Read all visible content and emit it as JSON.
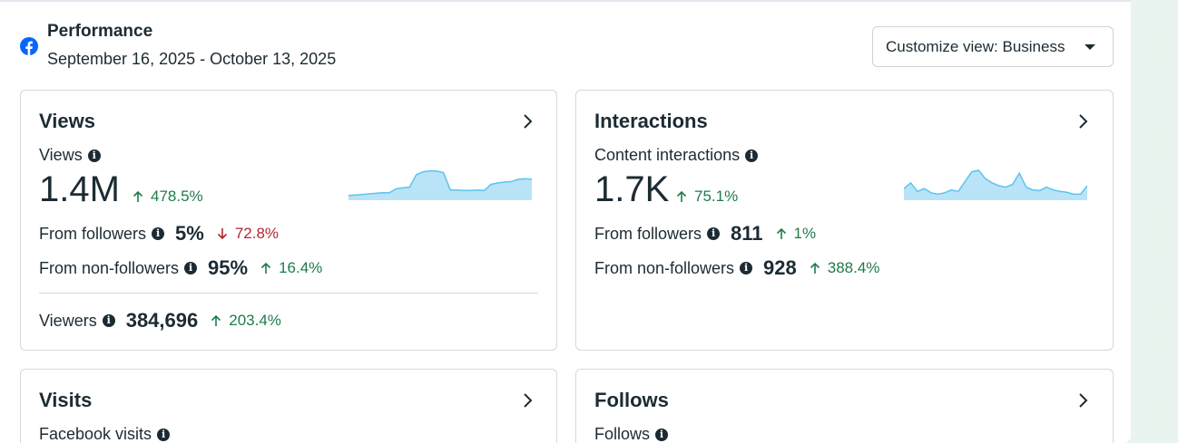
{
  "header": {
    "title": "Performance",
    "date_range": "September 16, 2025 - October 13, 2025",
    "customize_label": "Customize view: Business",
    "brand_color": "#0866ff"
  },
  "views_card": {
    "title": "Views",
    "metric_label": "Views",
    "metric_value": "1.4M",
    "metric_delta": "478.5%",
    "from_followers_label": "From followers",
    "from_followers_value": "5%",
    "from_followers_delta": "72.8%",
    "from_non_followers_label": "From non-followers",
    "from_non_followers_value": "95%",
    "from_non_followers_delta": "16.4%",
    "viewers_label": "Viewers",
    "viewers_value": "384,696",
    "viewers_delta": "203.4%",
    "sparkline": [
      0.1,
      0.12,
      0.14,
      0.16,
      0.18,
      0.2,
      0.2,
      0.34,
      0.38,
      0.4,
      0.85,
      0.95,
      0.98,
      0.97,
      0.92,
      0.3,
      0.3,
      0.28,
      0.28,
      0.3,
      0.28,
      0.5,
      0.55,
      0.58,
      0.6,
      0.68,
      0.7,
      0.68
    ]
  },
  "interactions_card": {
    "title": "Interactions",
    "metric_label": "Content interactions",
    "metric_value": "1.7K",
    "metric_delta": "75.1%",
    "from_followers_label": "From followers",
    "from_followers_value": "811",
    "from_followers_delta": "1%",
    "from_non_followers_label": "From non-followers",
    "from_non_followers_value": "928",
    "from_non_followers_delta": "388.4%",
    "sparkline": [
      0.35,
      0.55,
      0.25,
      0.35,
      0.2,
      0.15,
      0.2,
      0.3,
      0.25,
      0.6,
      0.95,
      1.0,
      0.7,
      0.55,
      0.45,
      0.4,
      0.5,
      0.9,
      0.4,
      0.3,
      0.28,
      0.4,
      0.3,
      0.25,
      0.22,
      0.15,
      0.15,
      0.45
    ]
  },
  "visits_card": {
    "title": "Visits",
    "metric_label": "Facebook visits"
  },
  "follows_card": {
    "title": "Follows",
    "metric_label": "Follows"
  },
  "colors": {
    "positive": "#1e7b4a",
    "negative": "#b3262e",
    "sparkline_fill": "#b9e3f7",
    "sparkline_stroke": "#5bc4ef"
  }
}
